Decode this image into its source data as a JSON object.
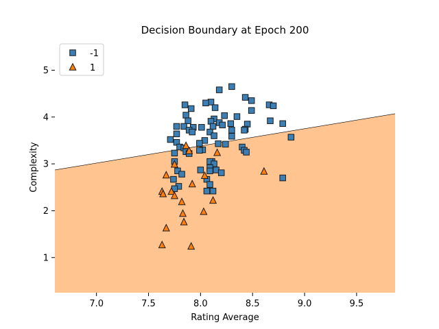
{
  "chart_data": {
    "type": "scatter",
    "title": "Decision Boundary at Epoch 200",
    "xlabel": "Rating Average",
    "ylabel": "Complexity",
    "xlim": [
      6.6,
      9.87
    ],
    "ylim": [
      0.25,
      5.65
    ],
    "xticks": [
      7.0,
      7.5,
      8.0,
      8.5,
      9.0,
      9.5
    ],
    "xtick_labels": [
      "7.0",
      "7.5",
      "8.0",
      "8.5",
      "9.0",
      "9.5"
    ],
    "yticks": [
      1,
      2,
      3,
      4,
      5
    ],
    "ytick_labels": [
      "1",
      "2",
      "3",
      "4",
      "5"
    ],
    "grid": false,
    "legend_position": "top-left",
    "decision_boundary": {
      "left": {
        "x": 6.6,
        "y": 2.87
      },
      "right": {
        "x": 9.87,
        "y": 4.07
      },
      "below_class": "1",
      "below_color": "#ffc48f",
      "above_color": "#ffffff"
    },
    "series": [
      {
        "name": "-1",
        "marker": "square",
        "color": "#3b7fb4",
        "points": [
          [
            8.3,
            4.65
          ],
          [
            8.18,
            4.58
          ],
          [
            8.43,
            4.42
          ],
          [
            8.1,
            4.32
          ],
          [
            8.05,
            4.3
          ],
          [
            8.49,
            4.35
          ],
          [
            8.66,
            4.26
          ],
          [
            8.7,
            4.24
          ],
          [
            7.85,
            4.26
          ],
          [
            8.14,
            4.2
          ],
          [
            7.91,
            4.18
          ],
          [
            8.49,
            4.14
          ],
          [
            8.13,
            3.96
          ],
          [
            8.23,
            4.03
          ],
          [
            8.35,
            4.01
          ],
          [
            7.86,
            4.04
          ],
          [
            8.67,
            3.92
          ],
          [
            8.79,
            3.86
          ],
          [
            8.18,
            3.88
          ],
          [
            8.21,
            3.83
          ],
          [
            8.29,
            3.86
          ],
          [
            7.88,
            3.92
          ],
          [
            8.1,
            3.91
          ],
          [
            8.45,
            3.85
          ],
          [
            7.77,
            3.8
          ],
          [
            7.93,
            3.78
          ],
          [
            7.84,
            3.8
          ],
          [
            8.01,
            3.78
          ],
          [
            8.12,
            3.8
          ],
          [
            8.43,
            3.74
          ],
          [
            8.42,
            3.72
          ],
          [
            8.3,
            3.72
          ],
          [
            7.89,
            3.72
          ],
          [
            8.09,
            3.68
          ],
          [
            7.92,
            3.68
          ],
          [
            7.77,
            3.64
          ],
          [
            8.13,
            3.6
          ],
          [
            8.3,
            3.59
          ],
          [
            8.87,
            3.57
          ],
          [
            7.71,
            3.52
          ],
          [
            7.77,
            3.46
          ],
          [
            8.04,
            3.5
          ],
          [
            8.17,
            3.43
          ],
          [
            7.99,
            3.44
          ],
          [
            8.24,
            3.42
          ],
          [
            8.4,
            3.36
          ],
          [
            7.8,
            3.36
          ],
          [
            7.84,
            3.34
          ],
          [
            8.02,
            3.3
          ],
          [
            7.99,
            3.29
          ],
          [
            8.42,
            3.29
          ],
          [
            8.44,
            3.25
          ],
          [
            7.86,
            3.26
          ],
          [
            7.89,
            3.22
          ],
          [
            7.75,
            3.23
          ],
          [
            8.11,
            3.05
          ],
          [
            8.09,
            3.05
          ],
          [
            8.13,
            3.0
          ],
          [
            7.75,
            3.05
          ],
          [
            8.09,
            2.92
          ],
          [
            8.15,
            2.87
          ],
          [
            8.0,
            2.87
          ],
          [
            7.78,
            2.85
          ],
          [
            8.09,
            2.85
          ],
          [
            7.82,
            2.78
          ],
          [
            8.2,
            2.81
          ],
          [
            8.06,
            2.67
          ],
          [
            7.74,
            2.67
          ],
          [
            8.79,
            2.7
          ],
          [
            8.09,
            2.56
          ],
          [
            7.79,
            2.52
          ],
          [
            8.06,
            2.42
          ],
          [
            8.12,
            2.42
          ],
          [
            7.75,
            2.47
          ]
        ]
      },
      {
        "name": "1",
        "marker": "triangle",
        "color": "#ff7f0e",
        "points": [
          [
            8.16,
            3.24
          ],
          [
            7.86,
            3.39
          ],
          [
            7.89,
            3.28
          ],
          [
            7.75,
            2.99
          ],
          [
            7.67,
            2.76
          ],
          [
            8.04,
            2.75
          ],
          [
            8.61,
            2.84
          ],
          [
            7.92,
            2.57
          ],
          [
            7.63,
            2.41
          ],
          [
            7.64,
            2.36
          ],
          [
            7.72,
            2.41
          ],
          [
            7.75,
            2.32
          ],
          [
            7.82,
            2.19
          ],
          [
            8.12,
            2.22
          ],
          [
            7.83,
            1.94
          ],
          [
            8.03,
            1.98
          ],
          [
            7.84,
            1.76
          ],
          [
            7.67,
            1.63
          ],
          [
            7.63,
            1.27
          ],
          [
            7.91,
            1.24
          ]
        ]
      }
    ]
  }
}
